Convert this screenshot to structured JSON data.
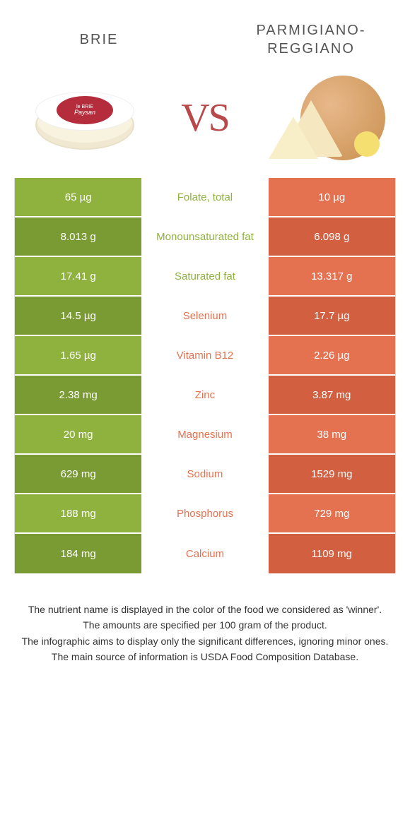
{
  "colors": {
    "left": "#8fb23e",
    "right": "#e47251",
    "left_dark": "#7a9a34",
    "right_dark": "#d15f40"
  },
  "foods": {
    "left": {
      "name": "Brie"
    },
    "right": {
      "name": "Parmigiano-Reggiano"
    }
  },
  "vs": "VS",
  "brie_label_top": "le BRIE",
  "brie_label_main": "Paysan",
  "rows": [
    {
      "left": "65 µg",
      "label": "Folate, total",
      "right": "10 µg",
      "winner": "left"
    },
    {
      "left": "8.013 g",
      "label": "Monounsaturated fat",
      "right": "6.098 g",
      "winner": "left"
    },
    {
      "left": "17.41 g",
      "label": "Saturated fat",
      "right": "13.317 g",
      "winner": "left"
    },
    {
      "left": "14.5 µg",
      "label": "Selenium",
      "right": "17.7 µg",
      "winner": "right"
    },
    {
      "left": "1.65 µg",
      "label": "Vitamin B12",
      "right": "2.26 µg",
      "winner": "right"
    },
    {
      "left": "2.38 mg",
      "label": "Zinc",
      "right": "3.87 mg",
      "winner": "right"
    },
    {
      "left": "20 mg",
      "label": "Magnesium",
      "right": "38 mg",
      "winner": "right"
    },
    {
      "left": "629 mg",
      "label": "Sodium",
      "right": "1529 mg",
      "winner": "right"
    },
    {
      "left": "188 mg",
      "label": "Phosphorus",
      "right": "729 mg",
      "winner": "right"
    },
    {
      "left": "184 mg",
      "label": "Calcium",
      "right": "1109 mg",
      "winner": "right"
    }
  ],
  "footer": {
    "line1": "The nutrient name is displayed in the color of the food we considered as 'winner'.",
    "line2": "The amounts are specified per 100 gram of the product.",
    "line3": "The infographic aims to display only the significant differences, ignoring minor ones.",
    "line4": "The main source of information is USDA Food Composition Database."
  }
}
